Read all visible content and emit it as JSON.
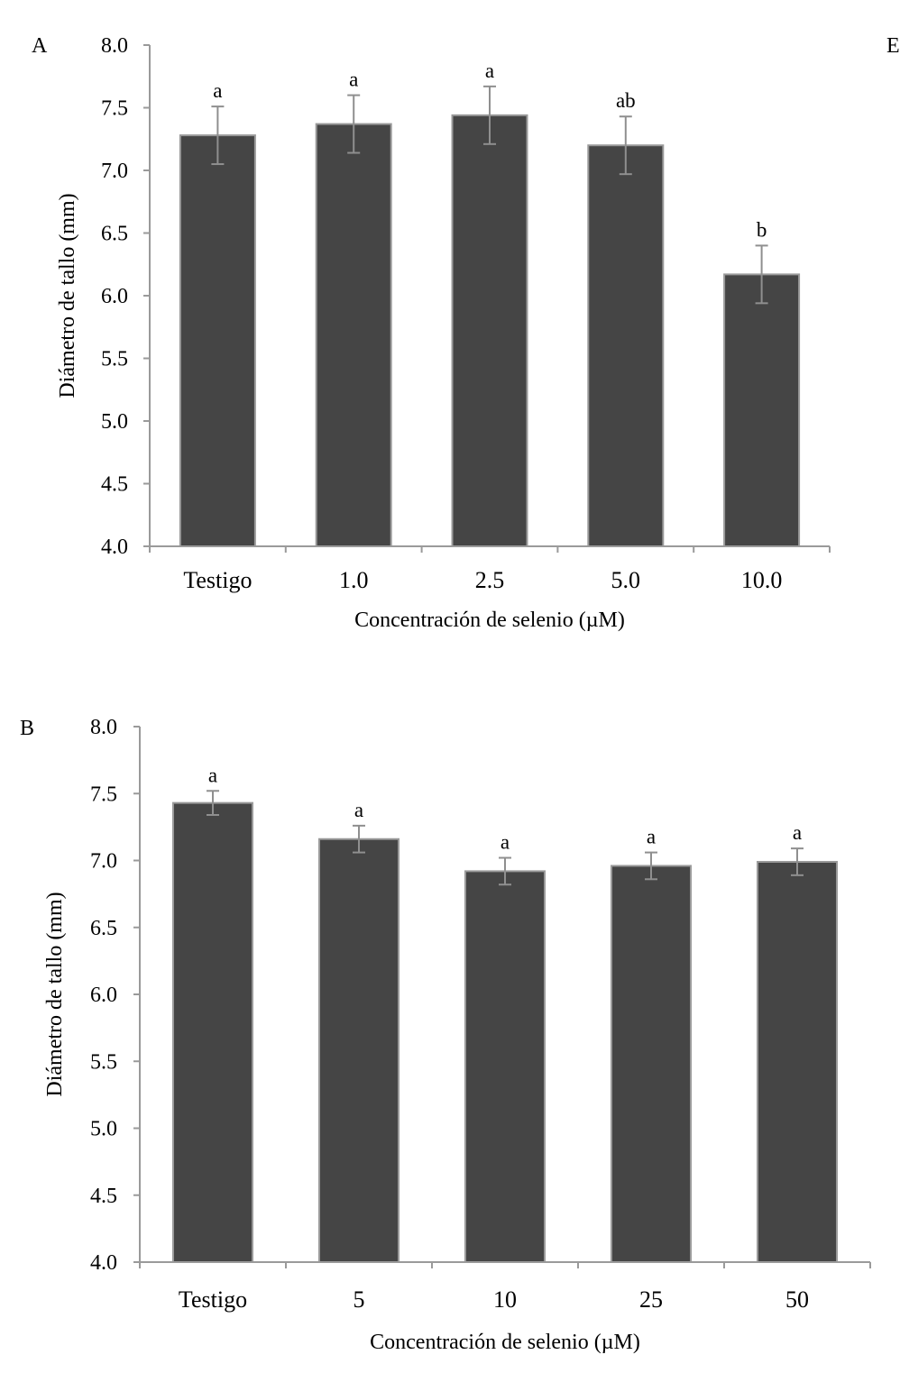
{
  "colors": {
    "bar": "#454545",
    "bar_edge": "#9a9a9a",
    "axis": "#9a9a9a",
    "errorbar": "#8f8f8f"
  },
  "panel_letters": [
    "A",
    "B"
  ],
  "cut_letter": "E",
  "chart_data": [
    {
      "type": "bar",
      "panel": "A",
      "title": "",
      "xlabel": "Concentración de selenio (µM)",
      "ylabel": "Diámetro de tallo (mm)",
      "ylim": [
        4.0,
        8.0
      ],
      "yticks": [
        4.0,
        4.5,
        5.0,
        5.5,
        6.0,
        6.5,
        7.0,
        7.5,
        8.0
      ],
      "ytick_labels": [
        "4.0",
        "4.5",
        "5.0",
        "5.5",
        "6.0",
        "6.5",
        "7.0",
        "7.5",
        "8.0"
      ],
      "categories": [
        "Testigo",
        "1.0",
        "2.5",
        "5.0",
        "10.0"
      ],
      "values": [
        7.28,
        7.37,
        7.44,
        7.2,
        6.17
      ],
      "errors": [
        0.23,
        0.23,
        0.23,
        0.23,
        0.23
      ],
      "significance": [
        "a",
        "a",
        "a",
        "ab",
        "b"
      ],
      "grid": false
    },
    {
      "type": "bar",
      "panel": "B",
      "title": "",
      "xlabel": "Concentración de selenio (µM)",
      "ylabel": "Diámetro de tallo (mm)",
      "ylim": [
        4.0,
        8.0
      ],
      "yticks": [
        4.0,
        4.5,
        5.0,
        5.5,
        6.0,
        6.5,
        7.0,
        7.5,
        8.0
      ],
      "ytick_labels": [
        "4.0",
        "4.5",
        "5.0",
        "5.5",
        "6.0",
        "6.5",
        "7.0",
        "7.5",
        "8.0"
      ],
      "categories": [
        "Testigo",
        "5",
        "10",
        "25",
        "50"
      ],
      "values": [
        7.43,
        7.16,
        6.92,
        6.96,
        6.99
      ],
      "errors": [
        0.09,
        0.1,
        0.1,
        0.1,
        0.1
      ],
      "significance": [
        "a",
        "a",
        "a",
        "a",
        "a"
      ],
      "grid": false
    }
  ]
}
